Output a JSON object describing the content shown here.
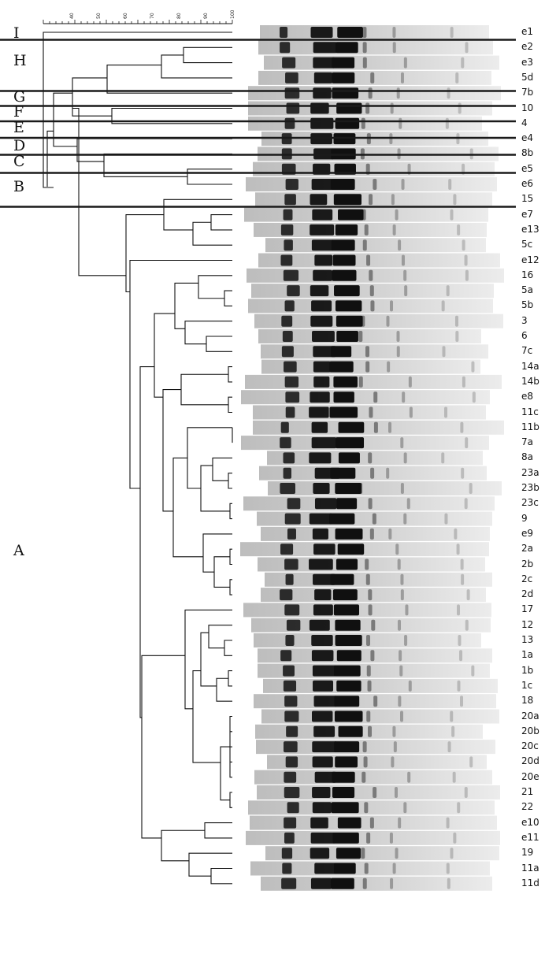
{
  "scale": {
    "ticks": [
      "40",
      "50",
      "60",
      "70",
      "80",
      "90",
      "100"
    ]
  },
  "clusters": [
    {
      "id": "I",
      "label": "I"
    },
    {
      "id": "H",
      "label": "H"
    },
    {
      "id": "G",
      "label": "G"
    },
    {
      "id": "F",
      "label": "F"
    },
    {
      "id": "E",
      "label": "E"
    },
    {
      "id": "D",
      "label": "D"
    },
    {
      "id": "C",
      "label": "C"
    },
    {
      "id": "B",
      "label": "B"
    },
    {
      "id": "A",
      "label": "A"
    }
  ],
  "lanes": [
    "e1",
    "e2",
    "e3",
    "5d",
    "7b",
    "10",
    "4",
    "e4",
    "8b",
    "e5",
    "e6",
    "15",
    "e7",
    "e13",
    "5c",
    "e12",
    "16",
    "5a",
    "5b",
    "3",
    "6",
    "7c",
    "14a",
    "14b",
    "e8",
    "11c",
    "11b",
    "7a",
    "8a",
    "23a",
    "23b",
    "23c",
    "9",
    "e9",
    "2a",
    "2b",
    "2c",
    "2d",
    "17",
    "12",
    "13",
    "1a",
    "1b",
    "1c",
    "18",
    "20a",
    "20b",
    "20c",
    "20d",
    "20e",
    "21",
    "22",
    "e10",
    "e11",
    "19",
    "11a",
    "11d"
  ],
  "colors": {
    "ink": "#111111",
    "gel_background": "#dcdcdc",
    "band_dark": "#101010"
  }
}
